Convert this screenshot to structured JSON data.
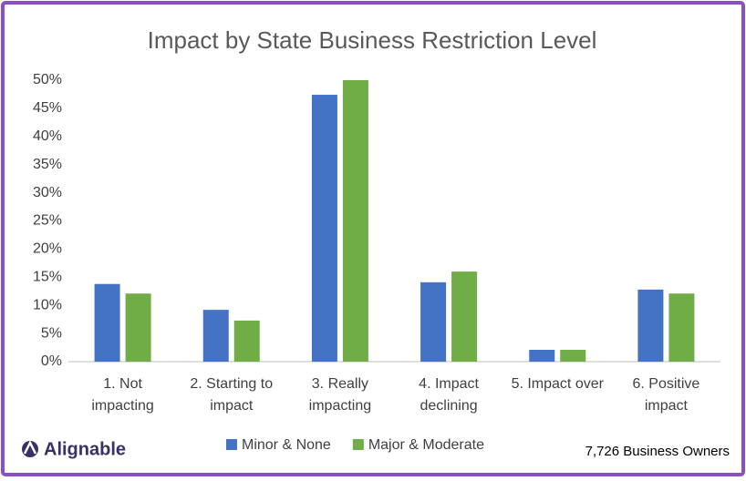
{
  "chart_data": {
    "type": "bar",
    "title": "Impact by State Business Restriction Level",
    "categories": [
      "1. Not\nimpacting",
      "2. Starting to\nimpact",
      "3. Really\nimpacting",
      "4. Impact\ndeclining",
      "5. Impact over",
      "6. Positive\nimpact"
    ],
    "series": [
      {
        "name": "Minor & None",
        "color": "#4472c4",
        "values": [
          13.8,
          9.2,
          47.4,
          14.1,
          2.1,
          12.8
        ]
      },
      {
        "name": "Major & Moderate",
        "color": "#70ad47",
        "values": [
          12.1,
          7.3,
          50.0,
          16.0,
          2.1,
          12.1
        ]
      }
    ],
    "ylim": [
      0,
      50
    ],
    "yticks": [
      {
        "value": 0,
        "label": "0%"
      },
      {
        "value": 5,
        "label": "5%"
      },
      {
        "value": 10,
        "label": "10%"
      },
      {
        "value": 15,
        "label": "15%"
      },
      {
        "value": 20,
        "label": "20%"
      },
      {
        "value": 25,
        "label": "25%"
      },
      {
        "value": 30,
        "label": "30%"
      },
      {
        "value": 35,
        "label": "35%"
      },
      {
        "value": 40,
        "label": "40%"
      },
      {
        "value": 45,
        "label": "45%"
      },
      {
        "value": 50,
        "label": "50%"
      }
    ],
    "grid": false,
    "legend": "bottom",
    "brand": "Alignable",
    "note": "7,726 Business Owners"
  }
}
